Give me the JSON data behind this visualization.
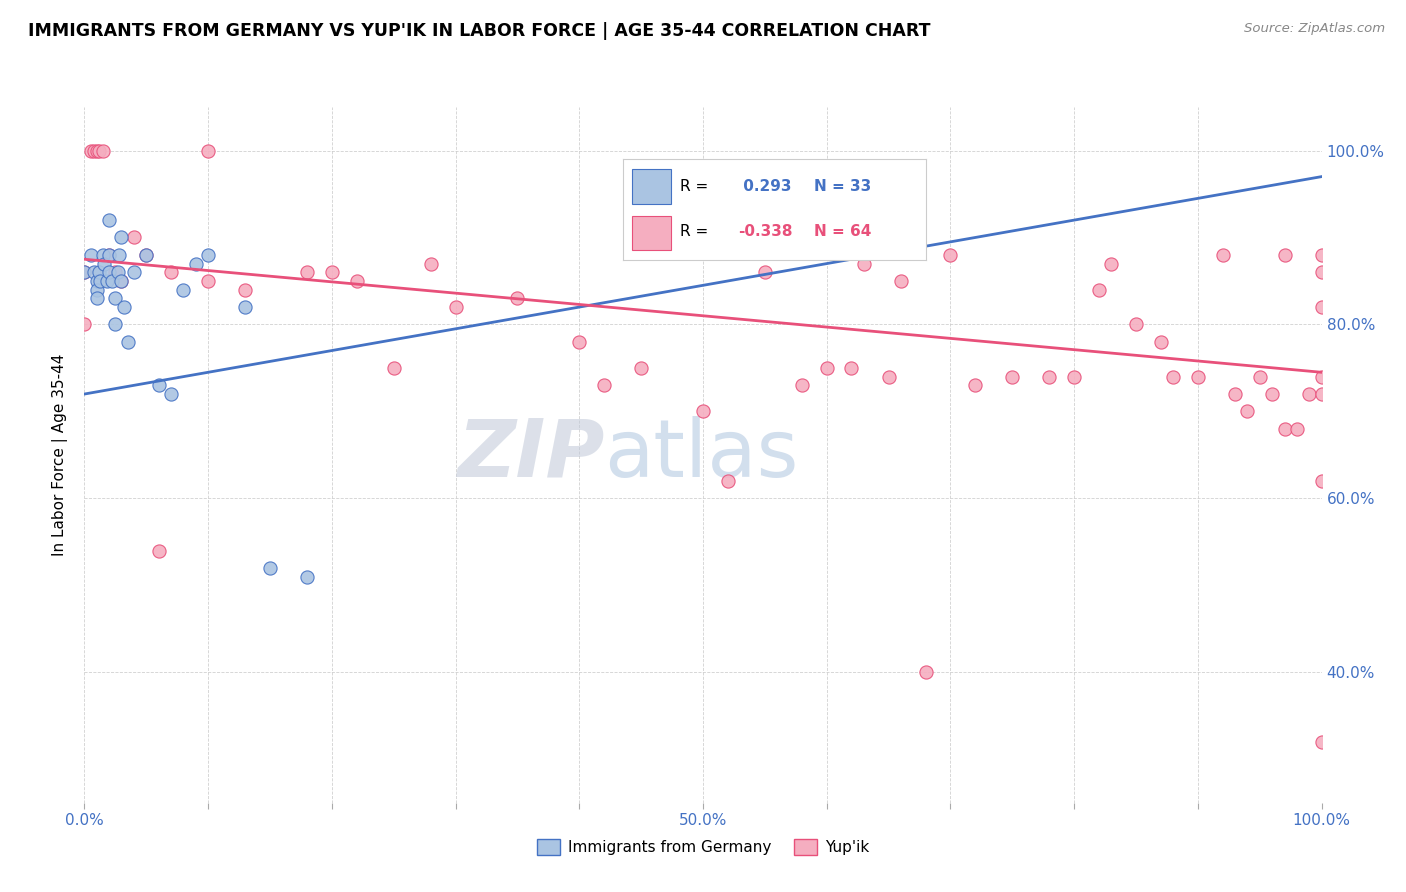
{
  "title": "IMMIGRANTS FROM GERMANY VS YUP'IK IN LABOR FORCE | AGE 35-44 CORRELATION CHART",
  "source": "Source: ZipAtlas.com",
  "ylabel": "In Labor Force | Age 35-44",
  "xlim": [
    0.0,
    1.0
  ],
  "ylim": [
    0.25,
    1.05
  ],
  "ytick_positions": [
    0.4,
    0.6,
    0.8,
    1.0
  ],
  "ytick_labels": [
    "40.0%",
    "60.0%",
    "80.0%",
    "100.0%"
  ],
  "color_germany": "#aac4e2",
  "color_yupik": "#f5aec0",
  "color_germany_line": "#4472c4",
  "color_yupik_line": "#e8507a",
  "watermark_zip": "ZIP",
  "watermark_atlas": "atlas",
  "germany_trend_x": [
    0.0,
    1.0
  ],
  "germany_trend_y": [
    0.72,
    0.97
  ],
  "yupik_trend_x": [
    0.0,
    1.0
  ],
  "yupik_trend_y": [
    0.875,
    0.745
  ],
  "scatter_germany_x": [
    0.0,
    0.005,
    0.008,
    0.01,
    0.01,
    0.01,
    0.012,
    0.013,
    0.015,
    0.016,
    0.018,
    0.02,
    0.02,
    0.02,
    0.022,
    0.025,
    0.025,
    0.027,
    0.028,
    0.03,
    0.03,
    0.032,
    0.035,
    0.04,
    0.05,
    0.06,
    0.07,
    0.08,
    0.09,
    0.1,
    0.13,
    0.15,
    0.18
  ],
  "scatter_germany_y": [
    0.86,
    0.88,
    0.86,
    0.85,
    0.84,
    0.83,
    0.86,
    0.85,
    0.88,
    0.87,
    0.85,
    0.92,
    0.88,
    0.86,
    0.85,
    0.83,
    0.8,
    0.86,
    0.88,
    0.9,
    0.85,
    0.82,
    0.78,
    0.86,
    0.88,
    0.73,
    0.72,
    0.84,
    0.87,
    0.88,
    0.82,
    0.52,
    0.51
  ],
  "scatter_yupik_x": [
    0.0,
    0.0,
    0.005,
    0.008,
    0.01,
    0.012,
    0.015,
    0.02,
    0.025,
    0.03,
    0.04,
    0.05,
    0.06,
    0.07,
    0.1,
    0.1,
    0.13,
    0.18,
    0.2,
    0.22,
    0.25,
    0.28,
    0.3,
    0.35,
    0.4,
    0.42,
    0.45,
    0.5,
    0.52,
    0.55,
    0.58,
    0.6,
    0.62,
    0.63,
    0.65,
    0.66,
    0.68,
    0.7,
    0.72,
    0.75,
    0.78,
    0.8,
    0.82,
    0.83,
    0.85,
    0.87,
    0.88,
    0.9,
    0.92,
    0.93,
    0.94,
    0.95,
    0.96,
    0.97,
    0.97,
    0.98,
    0.99,
    1.0,
    1.0,
    1.0,
    1.0,
    1.0,
    1.0,
    1.0
  ],
  "scatter_yupik_y": [
    0.86,
    0.8,
    1.0,
    1.0,
    1.0,
    1.0,
    1.0,
    0.88,
    0.86,
    0.85,
    0.9,
    0.88,
    0.54,
    0.86,
    1.0,
    0.85,
    0.84,
    0.86,
    0.86,
    0.85,
    0.75,
    0.87,
    0.82,
    0.83,
    0.78,
    0.73,
    0.75,
    0.7,
    0.62,
    0.86,
    0.73,
    0.75,
    0.75,
    0.87,
    0.74,
    0.85,
    0.4,
    0.88,
    0.73,
    0.74,
    0.74,
    0.74,
    0.84,
    0.87,
    0.8,
    0.78,
    0.74,
    0.74,
    0.88,
    0.72,
    0.7,
    0.74,
    0.72,
    0.88,
    0.68,
    0.68,
    0.72,
    0.88,
    0.82,
    0.72,
    0.74,
    0.86,
    0.62,
    0.32
  ]
}
